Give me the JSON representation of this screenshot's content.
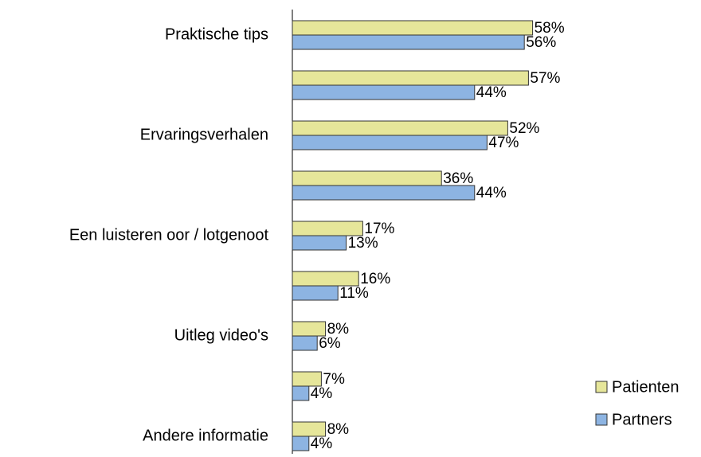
{
  "chart_data": {
    "type": "bar",
    "orientation": "horizontal",
    "categories": [
      "Praktische tips",
      null,
      "Ervaringsverhalen",
      null,
      "Een luisteren oor / lotgenoot",
      null,
      "Uitleg video's",
      null,
      "Andere informatie"
    ],
    "series": [
      {
        "name": "Patienten",
        "color": "#e6e69a",
        "values": [
          58,
          57,
          52,
          36,
          17,
          16,
          8,
          7,
          8
        ],
        "value_labels": [
          "58%",
          "57%",
          "52%",
          "36%",
          "17%",
          "16%",
          "8%",
          "7%",
          "8%"
        ]
      },
      {
        "name": "Partners",
        "color": "#8db4e2",
        "values": [
          56,
          44,
          47,
          44,
          13,
          11,
          6,
          4,
          4
        ],
        "value_labels": [
          "56%",
          "44%",
          "47%",
          "44%",
          "13%",
          "11%",
          "6%",
          "4%",
          "4%"
        ]
      }
    ],
    "legend": "right-bottom"
  }
}
